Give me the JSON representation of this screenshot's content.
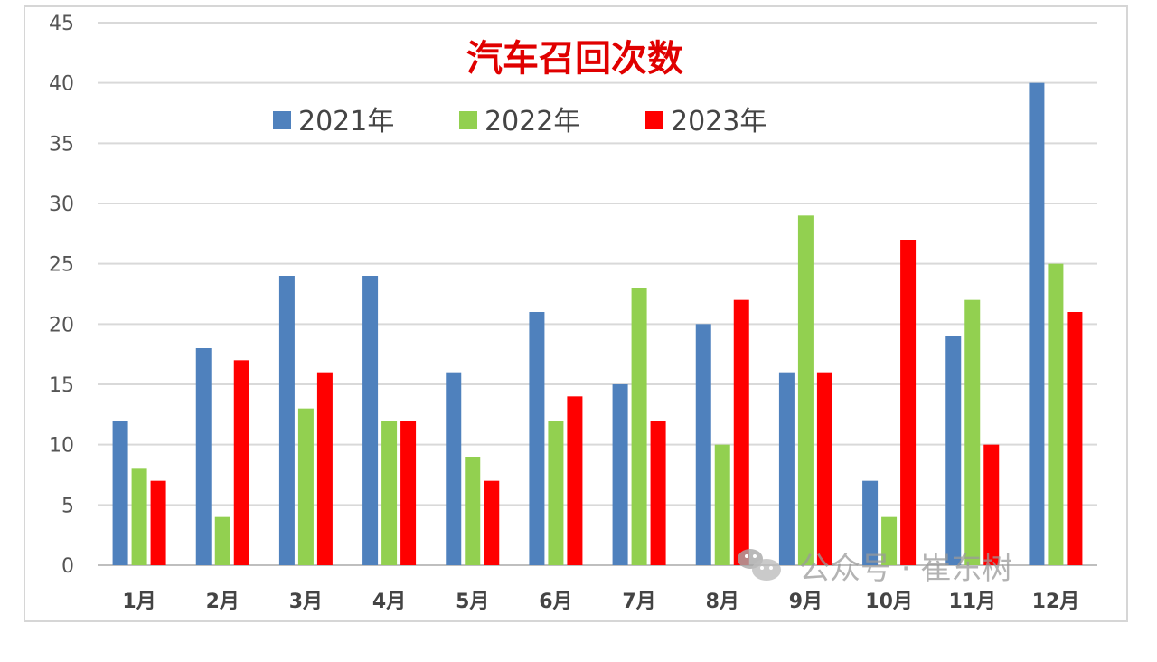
{
  "chart_data": {
    "type": "bar",
    "title": "汽车召回次数",
    "categories": [
      "1月",
      "2月",
      "3月",
      "4月",
      "5月",
      "6月",
      "7月",
      "8月",
      "9月",
      "10月",
      "11月",
      "12月"
    ],
    "series": [
      {
        "name": "2021年",
        "color": "#4f81bd",
        "values": [
          12,
          18,
          24,
          24,
          16,
          21,
          15,
          20,
          16,
          7,
          19,
          40
        ]
      },
      {
        "name": "2022年",
        "color": "#92d050",
        "values": [
          8,
          4,
          13,
          12,
          9,
          12,
          23,
          10,
          29,
          4,
          22,
          25
        ]
      },
      {
        "name": "2023年",
        "color": "#ff0000",
        "values": [
          7,
          17,
          16,
          12,
          7,
          14,
          12,
          22,
          16,
          27,
          10,
          21
        ]
      }
    ],
    "ylim": [
      0,
      45
    ],
    "yticks": [
      0,
      5,
      10,
      15,
      20,
      25,
      30,
      35,
      40,
      45
    ],
    "grid": true,
    "legend_position": "top"
  },
  "watermark": {
    "text": "公众号 · 崔东树",
    "icon": "wechat-icon"
  }
}
